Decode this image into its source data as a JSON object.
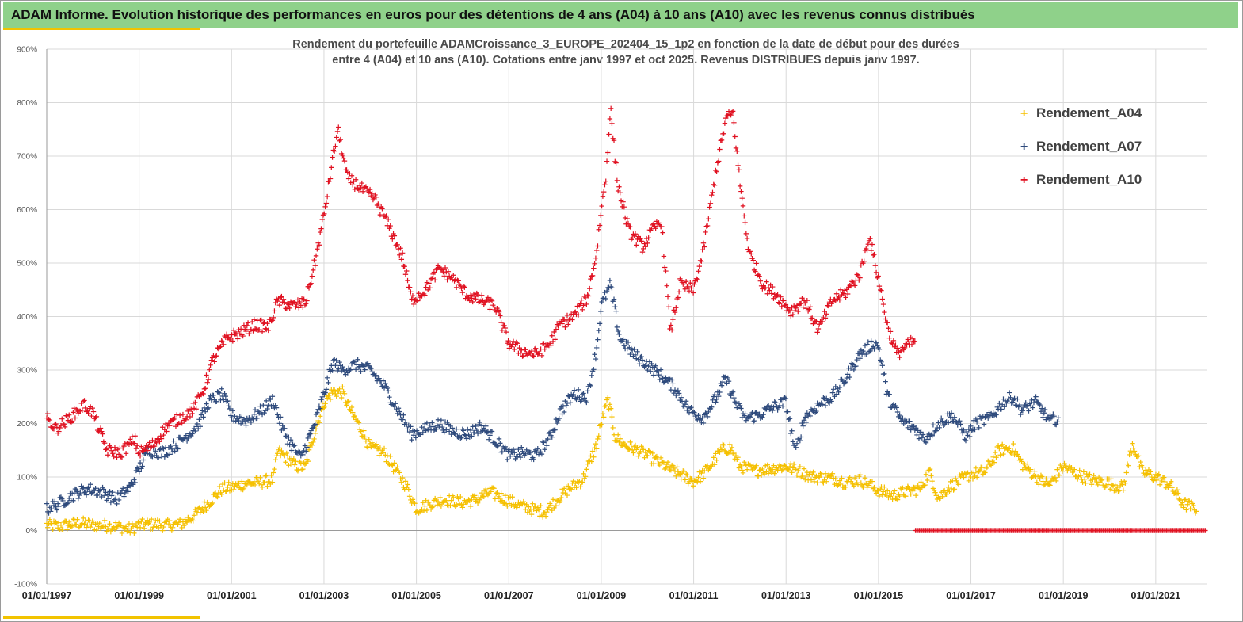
{
  "header": {
    "title": "ADAM Informe. Evolution historique des performances en euros pour des détentions de 4 ans (A04) à 10 ans (A10) avec les revenus connus distribués"
  },
  "colors": {
    "banner": "#8fd18a",
    "accent": "#f2c300",
    "A04": "#f5c000",
    "A07": "#2e4a7c",
    "A10": "#e01020"
  },
  "chart_data": {
    "type": "scatter",
    "title_line1": "Rendement du portefeuille ADAMCroissance_3_EUROPE_202404_15_1p2  en fonction de la date de début pour des durées",
    "title_line2": "entre 4 (A04) et 10 ans (A10). Cotations entre janv 1997 et oct 2025. Revenus DISTRIBUES depuis janv 1997.",
    "ylim": [
      -100,
      900
    ],
    "xlim": [
      1997.0,
      2022.1
    ],
    "y_ticks": [
      -100,
      0,
      100,
      200,
      300,
      400,
      500,
      600,
      700,
      800,
      900
    ],
    "y_tick_labels": [
      "-100%",
      "0%",
      "100%",
      "200%",
      "300%",
      "400%",
      "500%",
      "600%",
      "700%",
      "800%",
      "900%"
    ],
    "x_ticks": [
      1997,
      1999,
      2001,
      2003,
      2005,
      2007,
      2009,
      2011,
      2013,
      2015,
      2017,
      2019,
      2021
    ],
    "x_tick_labels": [
      "01/01/1997",
      "01/01/1999",
      "01/01/2001",
      "01/01/2003",
      "01/01/2005",
      "01/01/2007",
      "01/01/2009",
      "01/01/2011",
      "01/01/2013",
      "01/01/2015",
      "01/01/2017",
      "01/01/2019",
      "01/01/2021"
    ],
    "grid": true,
    "legend_position": "top-right",
    "series": [
      {
        "name": "Rendement_A04",
        "color_key": "A04",
        "x_end": 2021.9,
        "points": [
          [
            1997.0,
            10
          ],
          [
            1997.3,
            8
          ],
          [
            1997.7,
            14
          ],
          [
            1998.0,
            10
          ],
          [
            1998.5,
            8
          ],
          [
            1998.8,
            2
          ],
          [
            1999.0,
            10
          ],
          [
            1999.3,
            12
          ],
          [
            1999.6,
            10
          ],
          [
            1999.9,
            12
          ],
          [
            2000.2,
            28
          ],
          [
            2000.5,
            52
          ],
          [
            2000.8,
            78
          ],
          [
            2001.0,
            80
          ],
          [
            2001.3,
            88
          ],
          [
            2001.6,
            90
          ],
          [
            2001.9,
            95
          ],
          [
            2002.0,
            148
          ],
          [
            2002.2,
            135
          ],
          [
            2002.4,
            120
          ],
          [
            2002.6,
            118
          ],
          [
            2002.8,
            185
          ],
          [
            2003.0,
            240
          ],
          [
            2003.2,
            260
          ],
          [
            2003.4,
            258
          ],
          [
            2003.6,
            220
          ],
          [
            2003.8,
            190
          ],
          [
            2004.0,
            155
          ],
          [
            2004.3,
            145
          ],
          [
            2004.5,
            120
          ],
          [
            2004.8,
            80
          ],
          [
            2005.0,
            40
          ],
          [
            2005.3,
            50
          ],
          [
            2005.6,
            58
          ],
          [
            2006.0,
            52
          ],
          [
            2006.3,
            58
          ],
          [
            2006.6,
            72
          ],
          [
            2007.0,
            55
          ],
          [
            2007.3,
            45
          ],
          [
            2007.6,
            38
          ],
          [
            2007.8,
            35
          ],
          [
            2008.0,
            55
          ],
          [
            2008.3,
            78
          ],
          [
            2008.6,
            95
          ],
          [
            2008.9,
            160
          ],
          [
            2009.0,
            200
          ],
          [
            2009.15,
            245
          ],
          [
            2009.3,
            175
          ],
          [
            2009.5,
            160
          ],
          [
            2009.8,
            150
          ],
          [
            2010.0,
            140
          ],
          [
            2010.3,
            125
          ],
          [
            2010.6,
            110
          ],
          [
            2011.0,
            92
          ],
          [
            2011.2,
            105
          ],
          [
            2011.4,
            125
          ],
          [
            2011.6,
            150
          ],
          [
            2011.8,
            155
          ],
          [
            2012.0,
            120
          ],
          [
            2012.3,
            112
          ],
          [
            2012.6,
            115
          ],
          [
            2013.0,
            120
          ],
          [
            2013.3,
            110
          ],
          [
            2013.6,
            100
          ],
          [
            2014.0,
            98
          ],
          [
            2014.3,
            90
          ],
          [
            2014.6,
            95
          ],
          [
            2015.0,
            75
          ],
          [
            2015.3,
            65
          ],
          [
            2015.6,
            72
          ],
          [
            2015.9,
            78
          ],
          [
            2016.1,
            110
          ],
          [
            2016.3,
            60
          ],
          [
            2016.5,
            80
          ],
          [
            2016.8,
            95
          ],
          [
            2017.0,
            105
          ],
          [
            2017.3,
            110
          ],
          [
            2017.6,
            150
          ],
          [
            2017.9,
            155
          ],
          [
            2018.1,
            125
          ],
          [
            2018.3,
            110
          ],
          [
            2018.5,
            95
          ],
          [
            2018.7,
            85
          ],
          [
            2019.0,
            120
          ],
          [
            2019.3,
            105
          ],
          [
            2019.6,
            95
          ],
          [
            2020.0,
            88
          ],
          [
            2020.3,
            80
          ],
          [
            2020.5,
            165
          ],
          [
            2020.7,
            110
          ],
          [
            2021.0,
            100
          ],
          [
            2021.3,
            85
          ],
          [
            2021.6,
            50
          ],
          [
            2021.9,
            40
          ]
        ]
      },
      {
        "name": "Rendement_A07",
        "color_key": "A07",
        "x_end": 2018.9,
        "points": [
          [
            1997.0,
            40
          ],
          [
            1997.3,
            52
          ],
          [
            1997.6,
            68
          ],
          [
            1997.9,
            78
          ],
          [
            1998.2,
            72
          ],
          [
            1998.5,
            58
          ],
          [
            1998.8,
            80
          ],
          [
            1999.0,
            115
          ],
          [
            1999.2,
            150
          ],
          [
            1999.5,
            145
          ],
          [
            1999.8,
            160
          ],
          [
            2000.0,
            175
          ],
          [
            2000.3,
            200
          ],
          [
            2000.5,
            240
          ],
          [
            2000.8,
            255
          ],
          [
            2001.0,
            215
          ],
          [
            2001.3,
            205
          ],
          [
            2001.6,
            220
          ],
          [
            2001.9,
            245
          ],
          [
            2002.1,
            190
          ],
          [
            2002.3,
            160
          ],
          [
            2002.5,
            135
          ],
          [
            2002.8,
            200
          ],
          [
            2003.0,
            255
          ],
          [
            2003.2,
            315
          ],
          [
            2003.4,
            300
          ],
          [
            2003.7,
            310
          ],
          [
            2004.0,
            300
          ],
          [
            2004.3,
            270
          ],
          [
            2004.6,
            225
          ],
          [
            2004.9,
            180
          ],
          [
            2005.2,
            190
          ],
          [
            2005.5,
            200
          ],
          [
            2005.8,
            185
          ],
          [
            2006.1,
            180
          ],
          [
            2006.4,
            195
          ],
          [
            2006.7,
            170
          ],
          [
            2007.0,
            140
          ],
          [
            2007.3,
            145
          ],
          [
            2007.6,
            140
          ],
          [
            2007.9,
            175
          ],
          [
            2008.1,
            220
          ],
          [
            2008.4,
            255
          ],
          [
            2008.7,
            250
          ],
          [
            2008.9,
            340
          ],
          [
            2009.0,
            420
          ],
          [
            2009.2,
            460
          ],
          [
            2009.4,
            360
          ],
          [
            2009.7,
            330
          ],
          [
            2010.0,
            310
          ],
          [
            2010.3,
            290
          ],
          [
            2010.6,
            265
          ],
          [
            2010.9,
            225
          ],
          [
            2011.2,
            210
          ],
          [
            2011.5,
            250
          ],
          [
            2011.7,
            285
          ],
          [
            2011.9,
            240
          ],
          [
            2012.1,
            210
          ],
          [
            2012.4,
            215
          ],
          [
            2012.7,
            230
          ],
          [
            2013.0,
            240
          ],
          [
            2013.2,
            145
          ],
          [
            2013.4,
            210
          ],
          [
            2013.7,
            235
          ],
          [
            2014.0,
            250
          ],
          [
            2014.3,
            285
          ],
          [
            2014.6,
            330
          ],
          [
            2014.9,
            350
          ],
          [
            2015.0,
            345
          ],
          [
            2015.2,
            250
          ],
          [
            2015.5,
            205
          ],
          [
            2015.8,
            190
          ],
          [
            2016.0,
            170
          ],
          [
            2016.3,
            200
          ],
          [
            2016.6,
            215
          ],
          [
            2016.9,
            175
          ],
          [
            2017.1,
            200
          ],
          [
            2017.4,
            210
          ],
          [
            2017.7,
            240
          ],
          [
            2017.9,
            250
          ],
          [
            2018.1,
            225
          ],
          [
            2018.4,
            240
          ],
          [
            2018.7,
            205
          ],
          [
            2018.9,
            210
          ]
        ]
      },
      {
        "name": "Rendement_A10",
        "color_key": "A10",
        "x_end": 2015.8,
        "points": [
          [
            1997.0,
            210
          ],
          [
            1997.2,
            190
          ],
          [
            1997.5,
            210
          ],
          [
            1997.8,
            235
          ],
          [
            1998.0,
            220
          ],
          [
            1998.3,
            150
          ],
          [
            1998.6,
            145
          ],
          [
            1998.9,
            170
          ],
          [
            1999.0,
            145
          ],
          [
            1999.3,
            160
          ],
          [
            1999.6,
            195
          ],
          [
            2000.0,
            215
          ],
          [
            2000.2,
            230
          ],
          [
            2000.4,
            265
          ],
          [
            2000.6,
            320
          ],
          [
            2000.9,
            360
          ],
          [
            2001.2,
            370
          ],
          [
            2001.5,
            385
          ],
          [
            2001.8,
            380
          ],
          [
            2002.0,
            430
          ],
          [
            2002.3,
            420
          ],
          [
            2002.6,
            425
          ],
          [
            2002.8,
            500
          ],
          [
            2003.0,
            590
          ],
          [
            2003.2,
            700
          ],
          [
            2003.3,
            750
          ],
          [
            2003.5,
            660
          ],
          [
            2003.8,
            640
          ],
          [
            2004.1,
            620
          ],
          [
            2004.4,
            570
          ],
          [
            2004.7,
            510
          ],
          [
            2004.9,
            430
          ],
          [
            2005.2,
            450
          ],
          [
            2005.5,
            490
          ],
          [
            2005.8,
            470
          ],
          [
            2006.1,
            440
          ],
          [
            2006.4,
            430
          ],
          [
            2006.7,
            420
          ],
          [
            2007.0,
            350
          ],
          [
            2007.3,
            335
          ],
          [
            2007.6,
            330
          ],
          [
            2007.9,
            350
          ],
          [
            2008.1,
            385
          ],
          [
            2008.4,
            400
          ],
          [
            2008.7,
            435
          ],
          [
            2008.9,
            520
          ],
          [
            2009.0,
            600
          ],
          [
            2009.1,
            660
          ],
          [
            2009.2,
            790
          ],
          [
            2009.35,
            650
          ],
          [
            2009.6,
            560
          ],
          [
            2009.9,
            530
          ],
          [
            2010.1,
            560
          ],
          [
            2010.3,
            580
          ],
          [
            2010.5,
            370
          ],
          [
            2010.7,
            460
          ],
          [
            2011.0,
            450
          ],
          [
            2011.2,
            520
          ],
          [
            2011.5,
            680
          ],
          [
            2011.7,
            770
          ],
          [
            2011.85,
            780
          ],
          [
            2012.0,
            650
          ],
          [
            2012.2,
            520
          ],
          [
            2012.5,
            460
          ],
          [
            2012.8,
            440
          ],
          [
            2013.1,
            410
          ],
          [
            2013.4,
            430
          ],
          [
            2013.7,
            375
          ],
          [
            2014.0,
            430
          ],
          [
            2014.3,
            445
          ],
          [
            2014.6,
            480
          ],
          [
            2014.8,
            550
          ],
          [
            2015.0,
            470
          ],
          [
            2015.2,
            380
          ],
          [
            2015.4,
            330
          ],
          [
            2015.6,
            345
          ],
          [
            2015.8,
            355
          ]
        ]
      },
      {
        "name": "A10_zero_segment",
        "color_key": "A10",
        "x_start": 2015.8,
        "x_end": 2022.1,
        "value": 0
      }
    ]
  }
}
